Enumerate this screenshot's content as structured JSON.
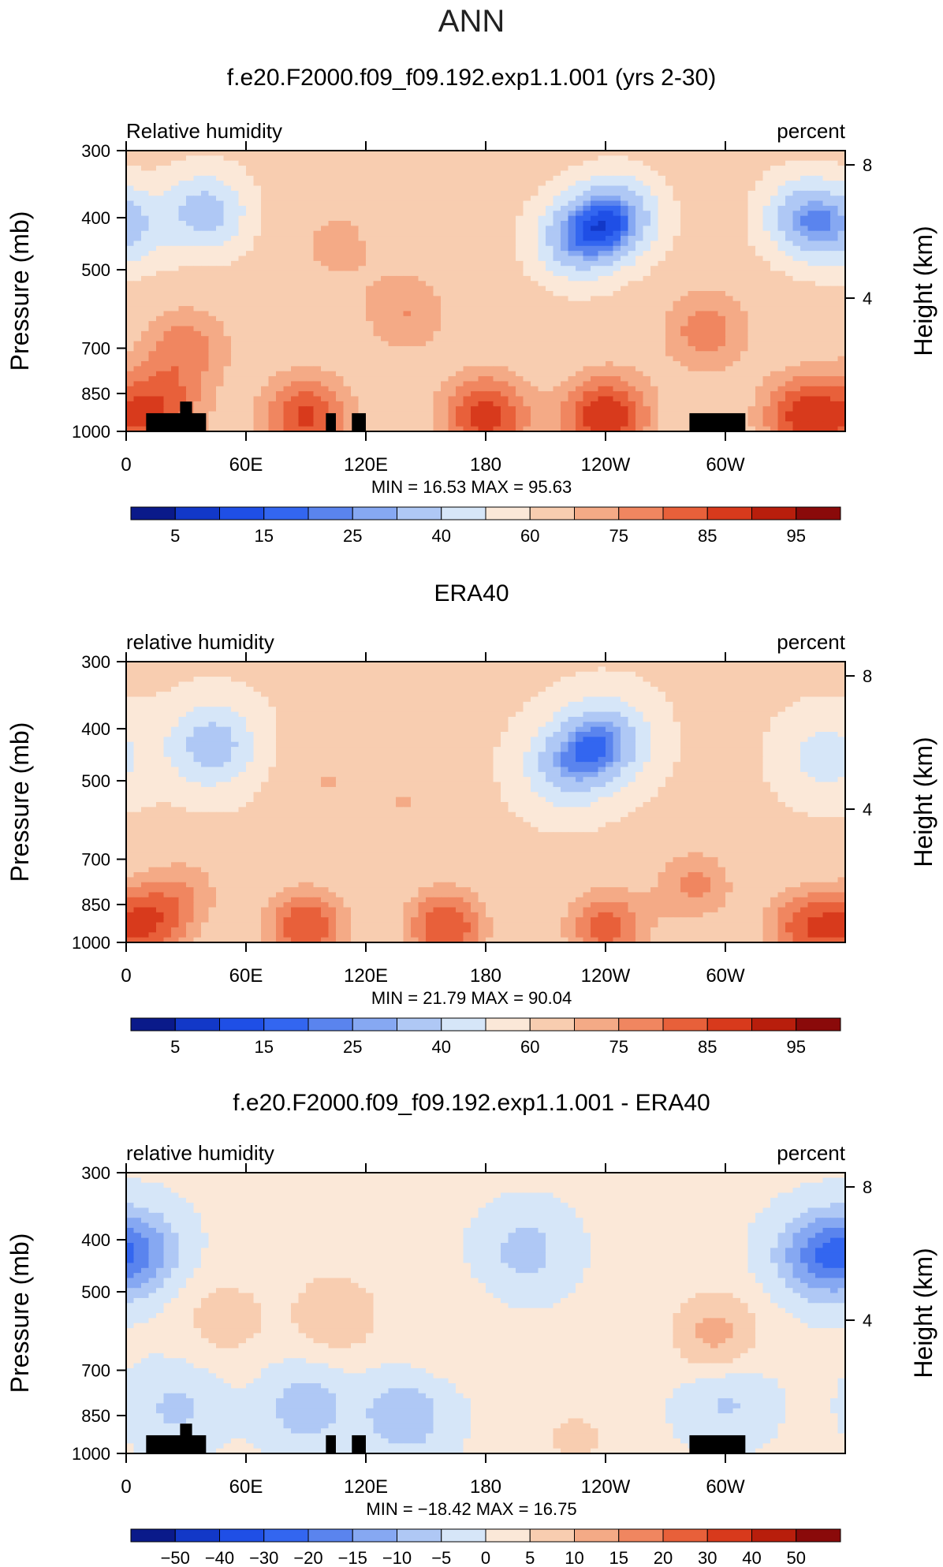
{
  "season": "ANN",
  "chart_data": [
    {
      "type": "contour",
      "title": "f.e20.F2000.f09_f09.192.exp1.1.001 (yrs 2-30)",
      "left_label": "Relative humidity",
      "right_label": "percent",
      "ylabel": "Pressure (mb)",
      "ylabel_right": "Height (km)",
      "x_ticks": [
        "0",
        "60E",
        "120E",
        "180",
        "120W",
        "60W"
      ],
      "x_tick_values": [
        0,
        60,
        120,
        180,
        240,
        300
      ],
      "xlim": [
        0,
        360
      ],
      "y_ticks": [
        "300",
        "400",
        "500",
        "700",
        "850",
        "1000"
      ],
      "y_tick_values": [
        300,
        400,
        500,
        700,
        850,
        1000
      ],
      "ylim": [
        1000,
        300
      ],
      "height_ticks": [
        "8",
        "4"
      ],
      "height_tick_values": [
        8,
        4
      ],
      "min_label": "MIN =",
      "min": "16.53",
      "max_label": "MAX =",
      "max": "95.63",
      "colorbar": {
        "labels": [
          "5",
          "15",
          "25",
          "40",
          "60",
          "75",
          "85",
          "95"
        ],
        "colors": [
          "#0a1a8a",
          "#1238c8",
          "#1f4fe6",
          "#3366f0",
          "#5a84ee",
          "#86a8f2",
          "#afc8f5",
          "#d6e6f8",
          "#fbe8d8",
          "#f8cdb0",
          "#f4aa86",
          "#f08660",
          "#e8603a",
          "#d83a1c",
          "#b81e0c",
          "#8a0a0a"
        ]
      },
      "model_field": {
        "background_value": 65,
        "blobs": [
          {
            "lon": 245,
            "p": 400,
            "value": 25
          },
          {
            "lon": 225,
            "p": 440,
            "value": 32
          },
          {
            "lon": 340,
            "p": 400,
            "value": 32
          },
          {
            "lon": 40,
            "p": 390,
            "value": 35
          },
          {
            "lon": 0,
            "p": 420,
            "value": 45
          },
          {
            "lon": 105,
            "p": 450,
            "value": 72
          },
          {
            "lon": 140,
            "p": 600,
            "value": 75
          },
          {
            "lon": 30,
            "p": 700,
            "value": 78
          },
          {
            "lon": 290,
            "p": 650,
            "value": 78
          },
          {
            "lon": 180,
            "p": 940,
            "value": 88
          },
          {
            "lon": 90,
            "p": 940,
            "value": 86
          },
          {
            "lon": 240,
            "p": 940,
            "value": 90
          },
          {
            "lon": 340,
            "p": 940,
            "value": 88
          },
          {
            "lon": 15,
            "p": 920,
            "value": 84
          }
        ]
      }
    },
    {
      "type": "contour",
      "title": "ERA40",
      "left_label": "relative humidity",
      "right_label": "percent",
      "ylabel": "Pressure (mb)",
      "ylabel_right": "Height (km)",
      "x_ticks": [
        "0",
        "60E",
        "120E",
        "180",
        "120W",
        "60W"
      ],
      "x_tick_values": [
        0,
        60,
        120,
        180,
        240,
        300
      ],
      "xlim": [
        0,
        360
      ],
      "y_ticks": [
        "300",
        "400",
        "500",
        "700",
        "850",
        "1000"
      ],
      "y_tick_values": [
        300,
        400,
        500,
        700,
        850,
        1000
      ],
      "ylim": [
        1000,
        300
      ],
      "height_ticks": [
        "8",
        "4"
      ],
      "height_tick_values": [
        8,
        4
      ],
      "min_label": "MIN =",
      "min": "21.79",
      "max_label": "MAX =",
      "max": "90.04",
      "colorbar": {
        "labels": [
          "5",
          "15",
          "25",
          "40",
          "60",
          "75",
          "85",
          "95"
        ]
      },
      "model_field": {
        "background_value": 62,
        "blobs": [
          {
            "lon": 240,
            "p": 420,
            "value": 28
          },
          {
            "lon": 220,
            "p": 470,
            "value": 35
          },
          {
            "lon": 43,
            "p": 430,
            "value": 33
          },
          {
            "lon": 350,
            "p": 450,
            "value": 45
          },
          {
            "lon": 100,
            "p": 500,
            "value": 70
          },
          {
            "lon": 140,
            "p": 550,
            "value": 70
          },
          {
            "lon": 30,
            "p": 800,
            "value": 72
          },
          {
            "lon": 285,
            "p": 780,
            "value": 76
          },
          {
            "lon": 90,
            "p": 935,
            "value": 85
          },
          {
            "lon": 160,
            "p": 935,
            "value": 85
          },
          {
            "lon": 240,
            "p": 940,
            "value": 82
          },
          {
            "lon": 340,
            "p": 940,
            "value": 82
          },
          {
            "lon": 10,
            "p": 930,
            "value": 82
          }
        ]
      }
    },
    {
      "type": "contour",
      "title": "f.e20.F2000.f09_f09.192.exp1.1.001 - ERA40",
      "left_label": "relative humidity",
      "right_label": "percent",
      "ylabel": "Pressure (mb)",
      "ylabel_right": "Height (km)",
      "x_ticks": [
        "0",
        "60E",
        "120E",
        "180",
        "120W",
        "60W"
      ],
      "x_tick_values": [
        0,
        60,
        120,
        180,
        240,
        300
      ],
      "xlim": [
        0,
        360
      ],
      "y_ticks": [
        "300",
        "400",
        "500",
        "700",
        "850",
        "1000"
      ],
      "y_tick_values": [
        300,
        400,
        500,
        700,
        850,
        1000
      ],
      "ylim": [
        1000,
        300
      ],
      "height_ticks": [
        "8",
        "4"
      ],
      "height_tick_values": [
        8,
        4
      ],
      "min_label": "MIN =",
      "min": "−18.42",
      "max_label": "MAX =",
      "max": "16.75",
      "colorbar": {
        "labels": [
          "−50",
          "−40",
          "−30",
          "−20",
          "−15",
          "−10",
          "−5",
          "0",
          "5",
          "10",
          "15",
          "20",
          "30",
          "40",
          "50"
        ]
      },
      "model_field": {
        "background_value": 1,
        "blobs": [
          {
            "lon": 5,
            "p": 420,
            "value": -14
          },
          {
            "lon": 345,
            "p": 430,
            "value": -13
          },
          {
            "lon": 200,
            "p": 420,
            "value": -7
          },
          {
            "lon": 140,
            "p": 850,
            "value": -9
          },
          {
            "lon": 90,
            "p": 820,
            "value": -8
          },
          {
            "lon": 300,
            "p": 800,
            "value": -6
          },
          {
            "lon": 50,
            "p": 560,
            "value": 8
          },
          {
            "lon": 105,
            "p": 550,
            "value": 10
          },
          {
            "lon": 295,
            "p": 600,
            "value": 12
          },
          {
            "lon": 225,
            "p": 940,
            "value": 6
          },
          {
            "lon": 160,
            "p": 600,
            "value": 5
          },
          {
            "lon": 25,
            "p": 820,
            "value": -6
          }
        ]
      }
    }
  ]
}
